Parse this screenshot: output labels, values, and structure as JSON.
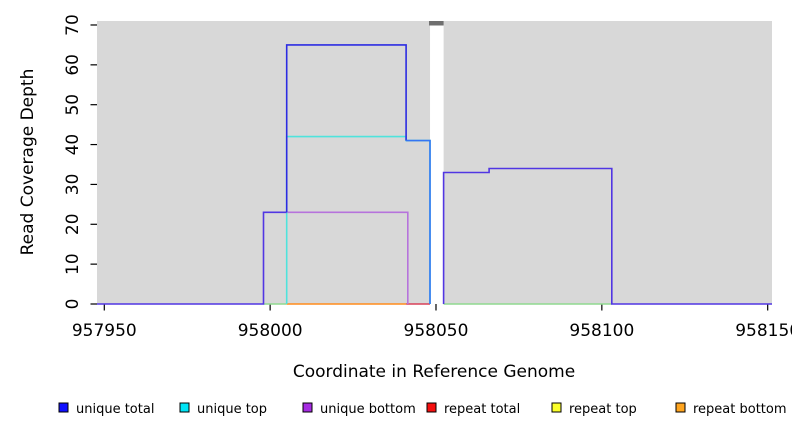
{
  "figure": {
    "xlabel": "Coordinate in Reference Genome",
    "ylabel": "Read Coverage Depth"
  },
  "chart_data": {
    "type": "line",
    "step": true,
    "title": "",
    "xlabel": "Coordinate in Reference Genome",
    "ylabel": "Read Coverage Depth",
    "xlim": [
      957947.8,
      958151.3
    ],
    "ylim": [
      0,
      71
    ],
    "x_ticks": [
      957950,
      958000,
      958050,
      958100,
      958150
    ],
    "y_ticks": [
      0,
      10,
      20,
      30,
      40,
      50,
      60,
      70
    ],
    "grid": false,
    "panel_bg": "#d8d8d8",
    "masked_region": {
      "x_start": 958048.2,
      "x_end": 958052.3,
      "fill": "#ffffff",
      "cap_color": "#6f6f6f",
      "note": "white vertical band through panel with dark cap at top"
    },
    "series": [
      {
        "name": "unlabeled-green-baseline-left",
        "color": "#8fd98f",
        "points": [
          [
            957998,
            0
          ],
          [
            958005,
            0
          ]
        ]
      },
      {
        "name": "unlabeled-green-baseline-right",
        "color": "#8fd98f",
        "points": [
          [
            958052.3,
            0
          ],
          [
            958103,
            0
          ]
        ]
      },
      {
        "name": "repeat-bottom",
        "color": "#ff8c1c",
        "points": [
          [
            958005,
            0
          ],
          [
            958041,
            0
          ]
        ]
      },
      {
        "name": "repeat-total",
        "color": "#d84058",
        "points": [
          [
            958041,
            0
          ],
          [
            958048.2,
            0
          ]
        ]
      },
      {
        "name": "unique-bottom",
        "color": "#b673dc",
        "points": [
          [
            958005,
            23
          ],
          [
            958041.5,
            23
          ],
          [
            958041.5,
            0
          ]
        ]
      },
      {
        "name": "unique-top",
        "color": "#4fe3dc",
        "points": [
          [
            958005,
            0
          ],
          [
            958005,
            42
          ],
          [
            958041,
            42
          ],
          [
            958041,
            41
          ],
          [
            958048.2,
            41
          ],
          [
            958048.2,
            0
          ]
        ]
      },
      {
        "name": "unique-total-and-bottom-overlap-left",
        "color": "#5136e3",
        "points": [
          [
            957947.8,
            0
          ],
          [
            957998,
            0
          ],
          [
            957998,
            23
          ],
          [
            958005,
            23
          ]
        ]
      },
      {
        "name": "unique-total",
        "color": "#2c2ce2",
        "points": [
          [
            958005,
            23
          ],
          [
            958005,
            65
          ],
          [
            958041,
            65
          ],
          [
            958041,
            41
          ]
        ]
      },
      {
        "name": "unique-total-over-unique-top",
        "color": "#3575f2",
        "points": [
          [
            958041,
            41
          ],
          [
            958048.2,
            41
          ],
          [
            958048.2,
            0
          ]
        ]
      },
      {
        "name": "unique-total-and-bottom-overlap-right",
        "color": "#5136e3",
        "points": [
          [
            958052.3,
            0
          ],
          [
            958052.3,
            33
          ],
          [
            958066,
            33
          ],
          [
            958066,
            34
          ],
          [
            958103,
            34
          ],
          [
            958103,
            0
          ],
          [
            958151.3,
            0
          ]
        ]
      }
    ],
    "legend": [
      {
        "label": "unique total",
        "color": "#0f0fff"
      },
      {
        "label": "unique top",
        "color": "#00e4f5"
      },
      {
        "label": "unique bottom",
        "color": "#a62ce2"
      },
      {
        "label": "repeat total",
        "color": "#f50f0f"
      },
      {
        "label": "repeat top",
        "color": "#fbff2b"
      },
      {
        "label": "repeat bottom",
        "color": "#ffa51f"
      }
    ],
    "legend_position": "bottom"
  }
}
